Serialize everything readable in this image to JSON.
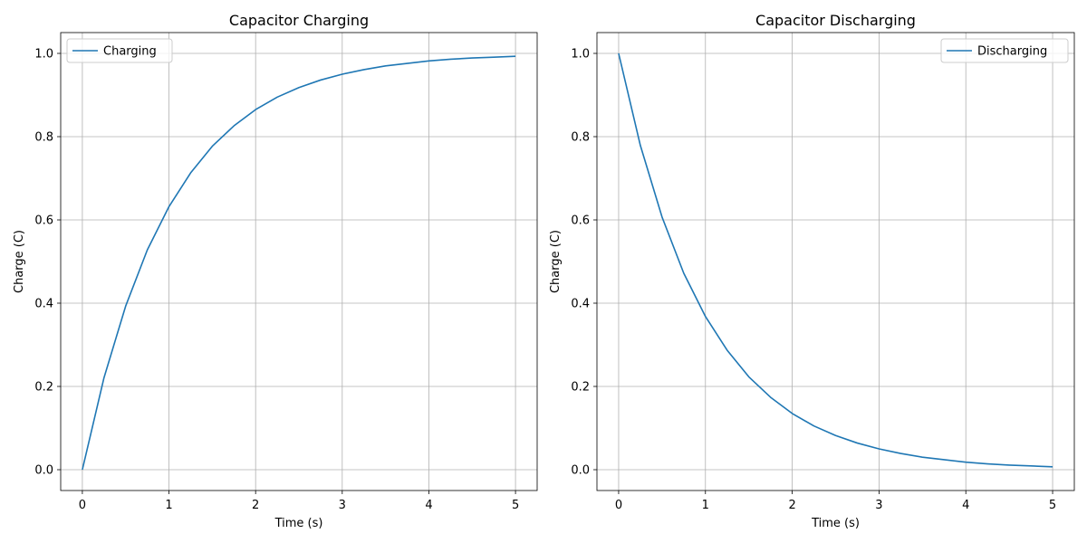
{
  "chart_data": [
    {
      "type": "line",
      "title": "Capacitor Charging",
      "xlabel": "Time (s)",
      "ylabel": "Charge (C)",
      "xlim": [
        -0.25,
        5.25
      ],
      "ylim": [
        -0.05,
        1.05
      ],
      "xticks": [
        0,
        1,
        2,
        3,
        4,
        5
      ],
      "yticks": [
        0.0,
        0.2,
        0.4,
        0.6,
        0.8,
        1.0
      ],
      "xtick_labels": [
        "0",
        "1",
        "2",
        "3",
        "4",
        "5"
      ],
      "ytick_labels": [
        "0.0",
        "0.2",
        "0.4",
        "0.6",
        "0.8",
        "1.0"
      ],
      "grid": true,
      "legend_position": "top-left",
      "series": [
        {
          "name": "Charging",
          "color": "#1f77b4",
          "x": [
            0,
            0.25,
            0.5,
            0.75,
            1,
            1.25,
            1.5,
            1.75,
            2,
            2.25,
            2.5,
            2.75,
            3,
            3.25,
            3.5,
            3.75,
            4,
            4.25,
            4.5,
            4.75,
            5
          ],
          "y": [
            0,
            0.221,
            0.393,
            0.528,
            0.632,
            0.713,
            0.777,
            0.826,
            0.865,
            0.895,
            0.918,
            0.936,
            0.95,
            0.961,
            0.97,
            0.976,
            0.982,
            0.986,
            0.989,
            0.991,
            0.993
          ]
        }
      ]
    },
    {
      "type": "line",
      "title": "Capacitor Discharging",
      "xlabel": "Time (s)",
      "ylabel": "Charge (C)",
      "xlim": [
        -0.25,
        5.25
      ],
      "ylim": [
        -0.05,
        1.05
      ],
      "xticks": [
        0,
        1,
        2,
        3,
        4,
        5
      ],
      "yticks": [
        0.0,
        0.2,
        0.4,
        0.6,
        0.8,
        1.0
      ],
      "xtick_labels": [
        "0",
        "1",
        "2",
        "3",
        "4",
        "5"
      ],
      "ytick_labels": [
        "0.0",
        "0.2",
        "0.4",
        "0.6",
        "0.8",
        "1.0"
      ],
      "grid": true,
      "legend_position": "top-right",
      "series": [
        {
          "name": "Discharging",
          "color": "#1f77b4",
          "x": [
            0,
            0.25,
            0.5,
            0.75,
            1,
            1.25,
            1.5,
            1.75,
            2,
            2.25,
            2.5,
            2.75,
            3,
            3.25,
            3.5,
            3.75,
            4,
            4.25,
            4.5,
            4.75,
            5
          ],
          "y": [
            1,
            0.779,
            0.607,
            0.472,
            0.368,
            0.287,
            0.223,
            0.174,
            0.135,
            0.105,
            0.082,
            0.064,
            0.05,
            0.039,
            0.03,
            0.024,
            0.018,
            0.014,
            0.011,
            0.009,
            0.007
          ]
        }
      ]
    }
  ]
}
